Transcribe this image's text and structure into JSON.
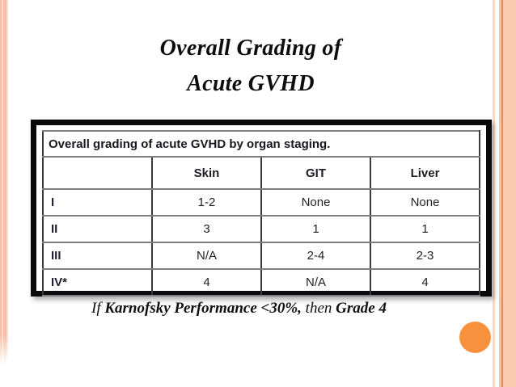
{
  "slide": {
    "title_line1": "Overall Grading of",
    "title_line2": "Acute GVHD"
  },
  "table": {
    "caption": "Overall grading of acute GVHD by organ staging.",
    "columns": [
      "",
      "Skin",
      "GIT",
      "Liver"
    ],
    "rows": [
      {
        "label": "I",
        "values": [
          "1-2",
          "None",
          "None"
        ]
      },
      {
        "label": "II",
        "values": [
          "3",
          "1",
          "1"
        ]
      },
      {
        "label": "III",
        "values": [
          "N/A",
          "2-4",
          "2-3"
        ]
      },
      {
        "label": "IV*",
        "values": [
          "4",
          "N/A",
          "4"
        ]
      }
    ]
  },
  "footnote": {
    "segments": [
      {
        "text": "If ",
        "bold": false
      },
      {
        "text": "Karnofsky Performance <30%,",
        "bold": true
      },
      {
        "text": " then ",
        "bold": false
      },
      {
        "text": "Grade 4",
        "bold": true
      }
    ]
  },
  "decorations": {
    "circle_color": "#f7913d",
    "stripe_peach": "#f2c0a6",
    "stripe_light_peach": "#fbcaad",
    "stripe_accent_line": "#de8e61"
  }
}
